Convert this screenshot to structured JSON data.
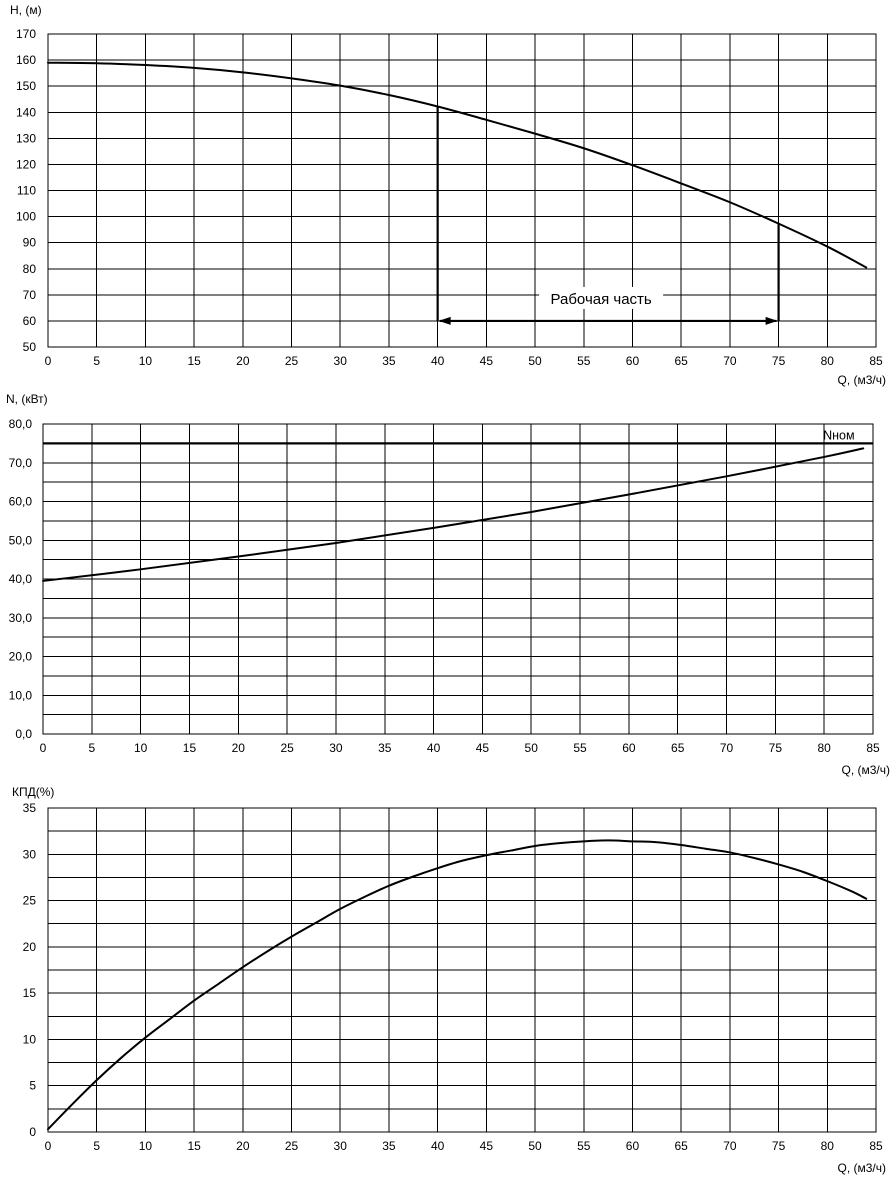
{
  "chart_data": [
    {
      "type": "line",
      "ylabel": "H, (м)",
      "xlabel": "Q, (м3/ч)",
      "xlim": [
        0,
        85
      ],
      "ylim": [
        50,
        170
      ],
      "x_ticks": [
        0,
        5,
        10,
        15,
        20,
        25,
        30,
        35,
        40,
        45,
        50,
        55,
        60,
        65,
        70,
        75,
        80,
        85
      ],
      "x_tick_labels": [
        "0",
        "5",
        "10",
        "15",
        "20",
        "25",
        "30",
        "35",
        "40",
        "45",
        "50",
        "55",
        "60",
        "65",
        "70",
        "75",
        "80",
        "85"
      ],
      "y_ticks": [
        50,
        60,
        70,
        80,
        90,
        100,
        110,
        120,
        130,
        140,
        150,
        160,
        170
      ],
      "y_tick_labels": [
        "50",
        "60",
        "70",
        "80",
        "90",
        "100",
        "110",
        "120",
        "130",
        "140",
        "150",
        "160",
        "170"
      ],
      "grid": true,
      "series": [
        {
          "x": [
            0,
            5,
            10,
            15,
            20,
            25,
            30,
            35,
            40,
            45,
            50,
            55,
            60,
            65,
            70,
            75,
            80,
            84
          ],
          "y": [
            159,
            158.8,
            158.1,
            157,
            155.3,
            153,
            150.2,
            146.6,
            142.2,
            137.1,
            131.8,
            126.2,
            119.7,
            112.7,
            105.5,
            97.3,
            88.5,
            80.5
          ]
        }
      ],
      "annotation": {
        "text": "Рабочая часть",
        "x_from": 40,
        "x_to": 75,
        "y": 60,
        "h_at_from": 142.2,
        "h_at_to": 97.3
      }
    },
    {
      "type": "line",
      "ylabel": "N, (кВт)",
      "xlabel": "Q, (м3/ч)",
      "xlim": [
        0,
        85
      ],
      "ylim": [
        0,
        80
      ],
      "x_ticks": [
        0,
        5,
        10,
        15,
        20,
        25,
        30,
        35,
        40,
        45,
        50,
        55,
        60,
        65,
        70,
        75,
        80,
        85
      ],
      "x_tick_labels": [
        "0",
        "5",
        "10",
        "15",
        "20",
        "25",
        "30",
        "35",
        "40",
        "45",
        "50",
        "55",
        "60",
        "65",
        "70",
        "75",
        "80",
        "85"
      ],
      "y_ticks": [
        0,
        10,
        20,
        30,
        40,
        50,
        60,
        70,
        80
      ],
      "y_tick_labels": [
        "0,0",
        "10,0",
        "20,0",
        "30,0",
        "40,0",
        "50,0",
        "60,0",
        "70,0",
        "80,0"
      ],
      "y_minor_step": 5,
      "grid": true,
      "series": [
        {
          "x": [
            0,
            10,
            20,
            30,
            40,
            50,
            60,
            70,
            80,
            84
          ],
          "y": [
            39.5,
            42.5,
            45.8,
            49.3,
            53.2,
            57.3,
            61.8,
            66.5,
            71.5,
            73.7
          ]
        }
      ],
      "hline": {
        "label": "Nном",
        "y": 75
      }
    },
    {
      "type": "line",
      "ylabel": "КПД(%)",
      "xlabel": "Q, (м3/ч)",
      "xlim": [
        0,
        85
      ],
      "ylim": [
        0,
        35
      ],
      "x_ticks": [
        0,
        5,
        10,
        15,
        20,
        25,
        30,
        35,
        40,
        45,
        50,
        55,
        60,
        65,
        70,
        75,
        80,
        85
      ],
      "x_tick_labels": [
        "0",
        "5",
        "10",
        "15",
        "20",
        "25",
        "30",
        "35",
        "40",
        "45",
        "50",
        "55",
        "60",
        "65",
        "70",
        "75",
        "80",
        "85"
      ],
      "y_ticks": [
        0,
        5,
        10,
        15,
        20,
        25,
        30,
        35
      ],
      "y_tick_labels": [
        "0",
        "5",
        "10",
        "15",
        "20",
        "25",
        "30",
        "35"
      ],
      "y_minor_step": 2.5,
      "grid": true,
      "series": [
        {
          "x": [
            0,
            2.5,
            5,
            7.5,
            10,
            12.5,
            15,
            17.5,
            20,
            22.5,
            25,
            27.5,
            30,
            32.5,
            35,
            37.5,
            40,
            42.5,
            45,
            47.5,
            50,
            52.5,
            55,
            57.5,
            60,
            62.5,
            65,
            67.5,
            70,
            72.5,
            75,
            77.5,
            80,
            82.5,
            84
          ],
          "y": [
            0.3,
            3.0,
            5.6,
            8.0,
            10.2,
            12.2,
            14.2,
            16.0,
            17.8,
            19.5,
            21.1,
            22.6,
            24.1,
            25.4,
            26.6,
            27.6,
            28.5,
            29.3,
            29.9,
            30.4,
            30.9,
            31.2,
            31.4,
            31.5,
            31.4,
            31.3,
            31.0,
            30.6,
            30.2,
            29.6,
            28.9,
            28.1,
            27.1,
            26.0,
            25.2
          ]
        }
      ]
    }
  ]
}
